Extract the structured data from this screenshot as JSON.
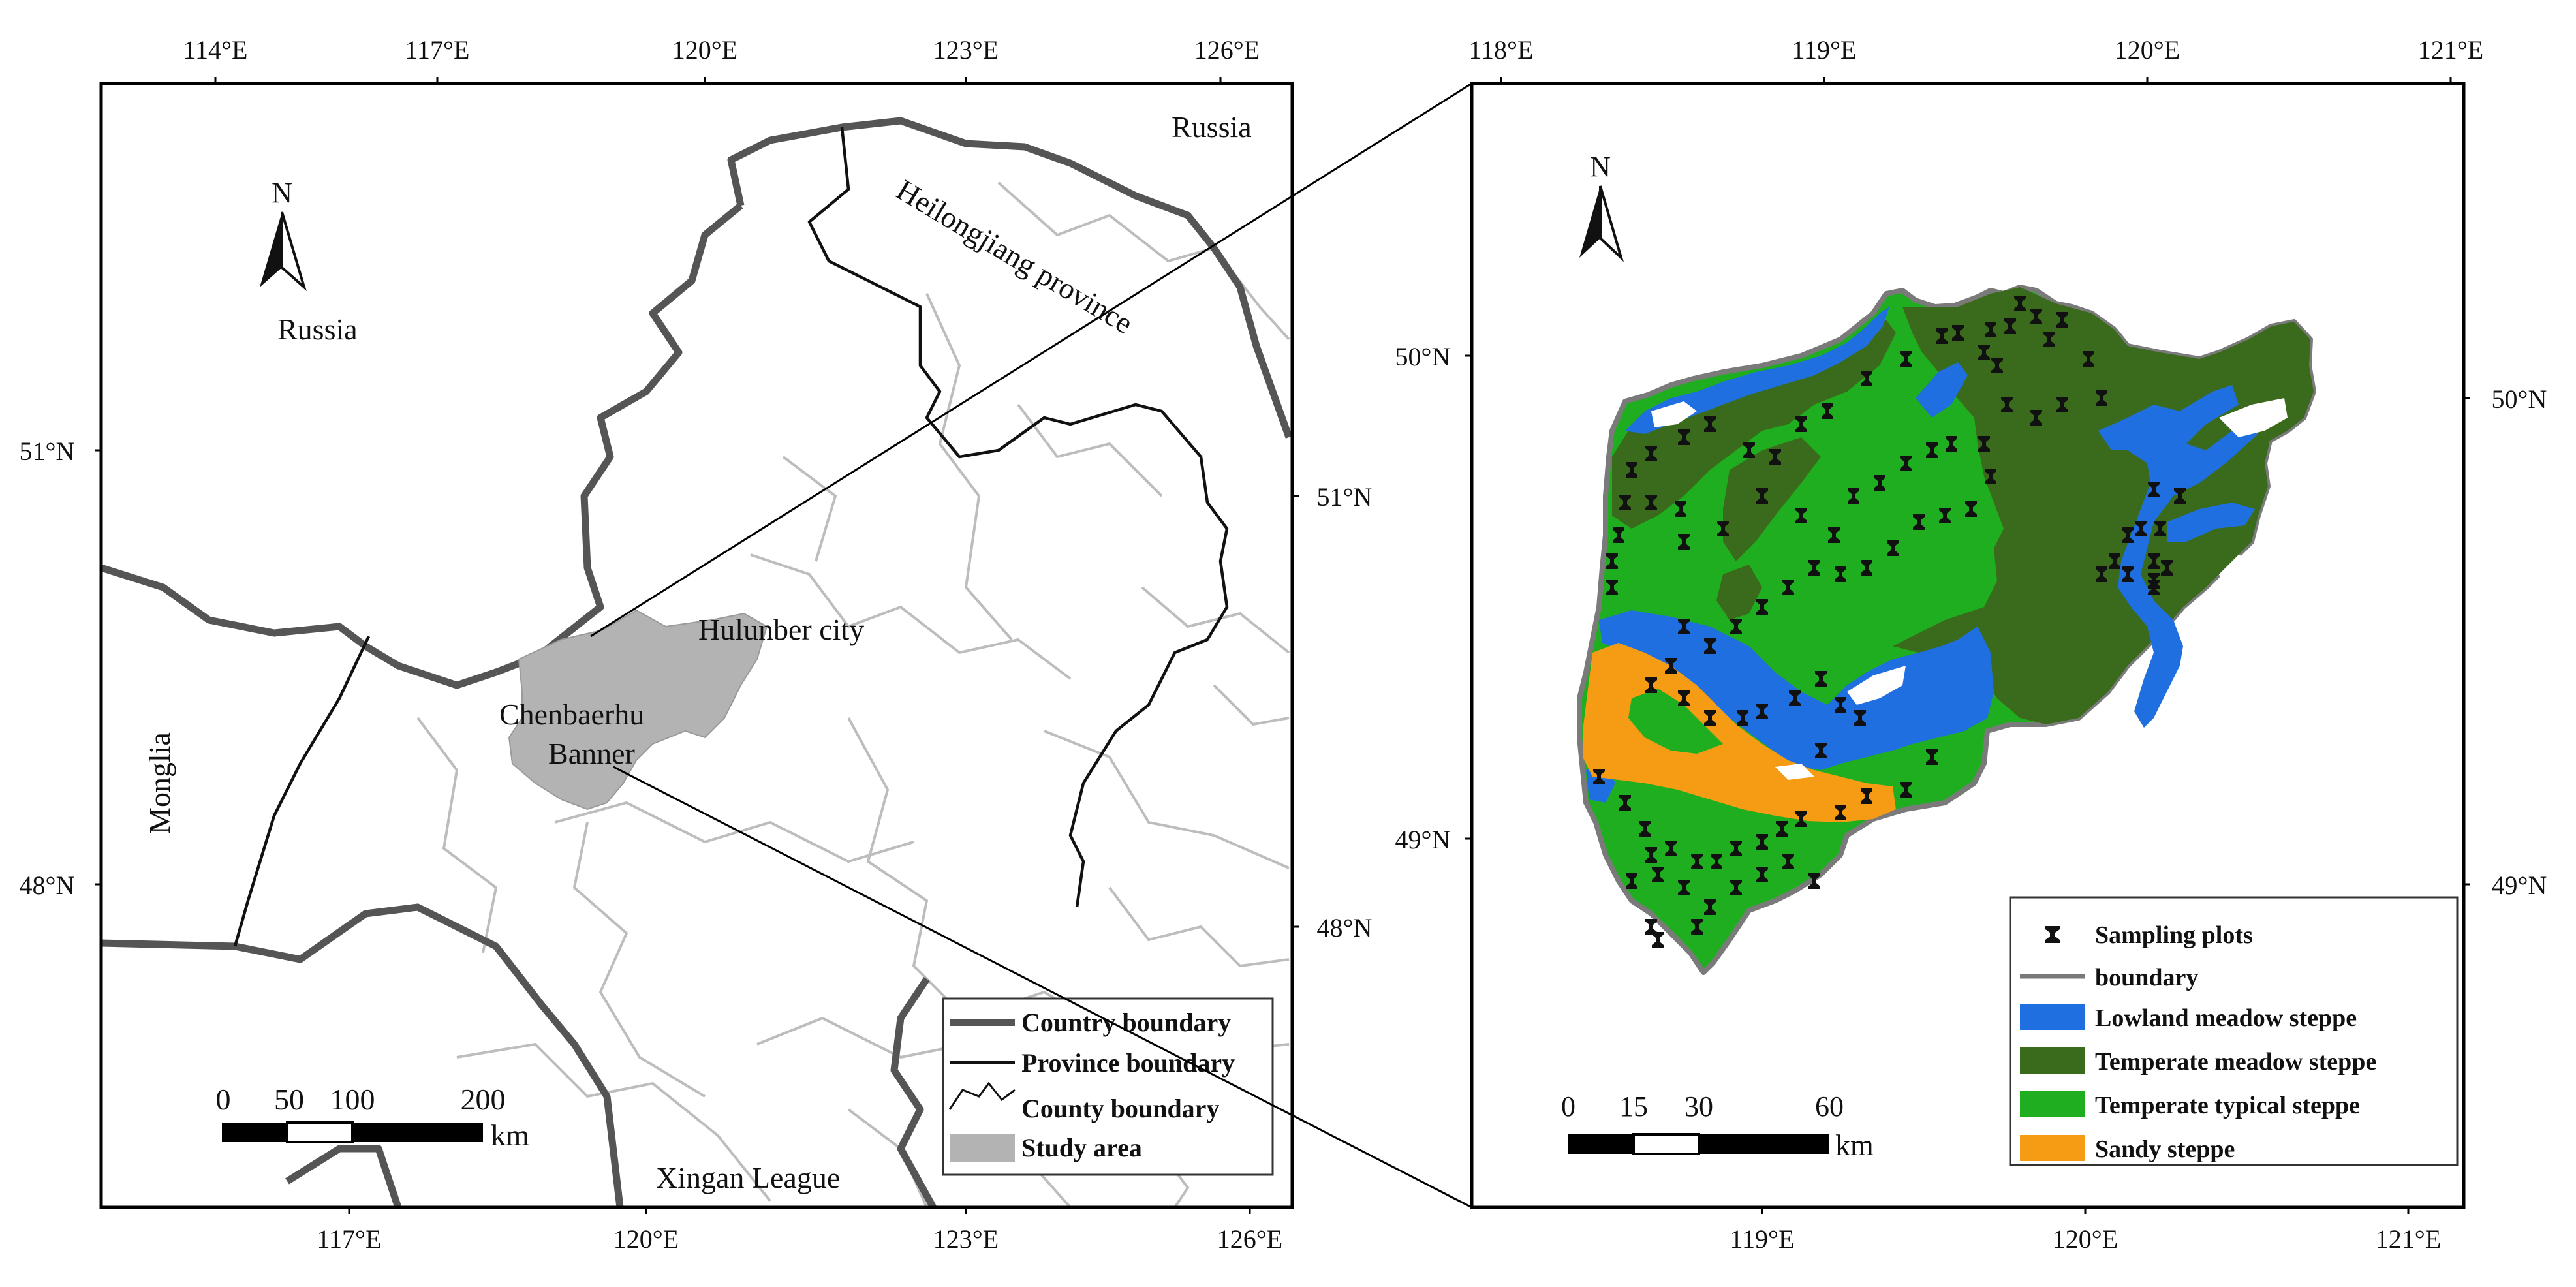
{
  "left_map": {
    "top_ticks": [
      "114°E",
      "117°E",
      "120°E",
      "123°E",
      "126°E"
    ],
    "bottom_ticks": [
      "117°E",
      "120°E",
      "123°E",
      "126°E"
    ],
    "left_ticks": [
      "51°N",
      "48°N"
    ],
    "right_ticks": [
      "51°N",
      "48°N"
    ],
    "labels": {
      "russia_top": "Russia",
      "russia_left": "Russia",
      "heilongjiang": "Heilongjiang province",
      "hulunber": "Hulunber city",
      "chenbaerhu_1": "Chenbaerhu",
      "chenbaerhu_2": "Banner",
      "monglia": "Monglia",
      "xingan": "Xingan League",
      "north": "N"
    },
    "scale": {
      "ticks": [
        "0",
        "50",
        "100",
        "200"
      ],
      "unit": "km"
    },
    "legend": [
      {
        "label": "Country boundary",
        "symbol": "country-line"
      },
      {
        "label": "Province boundary",
        "symbol": "province-line"
      },
      {
        "label": "County boundary",
        "symbol": "county-line"
      },
      {
        "label": "Study area",
        "symbol": "study-fill"
      }
    ]
  },
  "right_map": {
    "top_ticks": [
      "118°E",
      "119°E",
      "120°E",
      "121°E"
    ],
    "bottom_ticks": [
      "119°E",
      "120°E",
      "121°E"
    ],
    "left_ticks": [
      "50°N",
      "49°N"
    ],
    "right_ticks": [
      "50°N",
      "49°N"
    ],
    "north": "N",
    "scale": {
      "ticks": [
        "0",
        "15",
        "30",
        "60"
      ],
      "unit": "km"
    },
    "legend": [
      {
        "label": "Sampling plots",
        "symbol": "marker"
      },
      {
        "label": "boundary",
        "symbol": "line",
        "color": "#7a7a7a"
      },
      {
        "label": "Lowland meadow steppe",
        "symbol": "patch",
        "color": "#1f6fe0"
      },
      {
        "label": "Temperate meadow steppe",
        "symbol": "patch",
        "color": "#3a6b1c"
      },
      {
        "label": "Temperate typical steppe",
        "symbol": "patch",
        "color": "#1fae1f"
      },
      {
        "label": "Sandy steppe",
        "symbol": "patch",
        "color": "#f59b14"
      }
    ]
  },
  "colors": {
    "country": "#555555",
    "province": "#111111",
    "county": "#bdbdbd",
    "study_area": "#b3b3b3",
    "lowland": "#1f6fe0",
    "meadow": "#3a6b1c",
    "typical": "#1fae1f",
    "sandy": "#f59b14",
    "boundary": "#7a7a7a"
  }
}
